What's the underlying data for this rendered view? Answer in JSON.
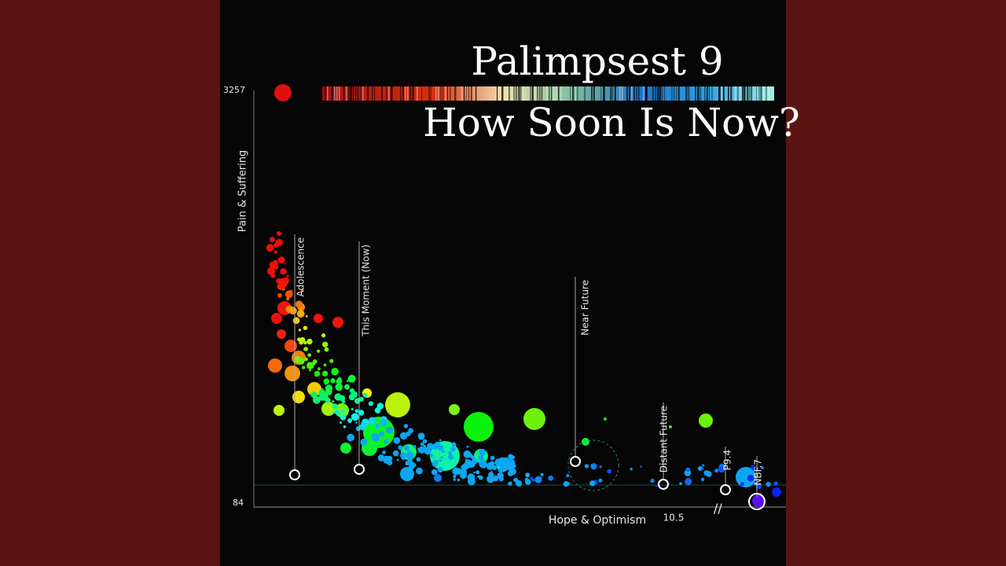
{
  "title": "Palimpsest 9",
  "subtitle": "How Soon Is Now?",
  "y_axis": {
    "label": "Pain & Suffering",
    "top": "3257",
    "bottom": "84"
  },
  "x_axis": {
    "label": "Hope & Optimism",
    "tick": "10.5"
  },
  "markers": [
    "Adolescence",
    "This Moment (Now)",
    "Near Future",
    "Distant Future",
    "P9.4",
    "NBF.7"
  ]
}
